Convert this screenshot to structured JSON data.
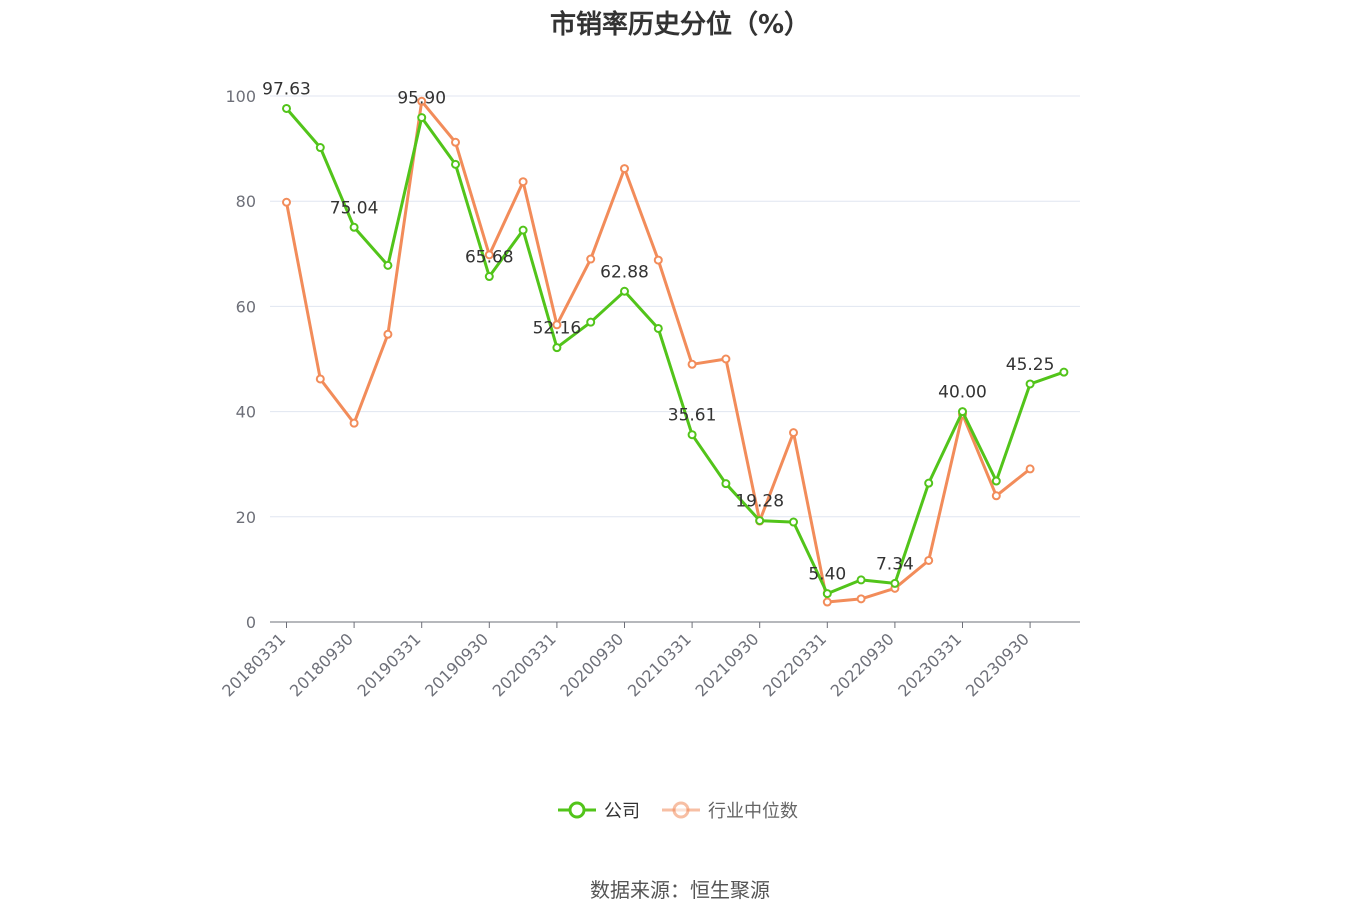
{
  "chart_data": {
    "type": "line",
    "title": "市销率历史分位（%）",
    "source": "数据来源：恒生聚源",
    "x": [
      "20180331",
      "20180630",
      "20180930",
      "20181231",
      "20190331",
      "20190630",
      "20190930",
      "20191231",
      "20200331",
      "20200630",
      "20200930",
      "20201231",
      "20210331",
      "20210630",
      "20210930",
      "20211231",
      "20220331",
      "20220630",
      "20220930",
      "20221231",
      "20230331",
      "20230630",
      "20230930",
      "20231231"
    ],
    "x_tick_labels": [
      "20180331",
      "20180930",
      "20190331",
      "20190930",
      "20200331",
      "20200930",
      "20210331",
      "20210930",
      "20220331",
      "20220930",
      "20230331",
      "20230930"
    ],
    "ylim": [
      0,
      100
    ],
    "y_ticks": [
      0,
      20,
      40,
      60,
      80,
      100
    ],
    "grid": true,
    "legend_position": "bottom",
    "series": [
      {
        "name": "公司",
        "color": "#52c41a",
        "values": [
          97.63,
          90.2,
          75.04,
          67.8,
          95.9,
          87.0,
          65.68,
          74.5,
          52.16,
          57.0,
          62.88,
          55.8,
          35.61,
          26.3,
          19.28,
          19.0,
          5.4,
          8.0,
          7.34,
          26.4,
          40.0,
          26.8,
          45.25,
          47.5
        ],
        "labels": [
          "97.63",
          "",
          "75.04",
          "",
          "95.90",
          "",
          "65.68",
          "",
          "52.16",
          "",
          "62.88",
          "",
          "35.61",
          "",
          "19.28",
          "",
          "5.40",
          "",
          "7.34",
          "",
          "40.00",
          "",
          "45.25",
          ""
        ]
      },
      {
        "name": "行业中位数",
        "color": "#f28c5a",
        "values": [
          79.8,
          46.2,
          37.8,
          54.7,
          99.0,
          91.2,
          69.8,
          83.7,
          56.5,
          69.0,
          86.2,
          68.8,
          49.0,
          50.0,
          19.2,
          36.0,
          3.8,
          4.4,
          6.4,
          11.7,
          39.5,
          24.0,
          29.1,
          null
        ]
      }
    ]
  }
}
